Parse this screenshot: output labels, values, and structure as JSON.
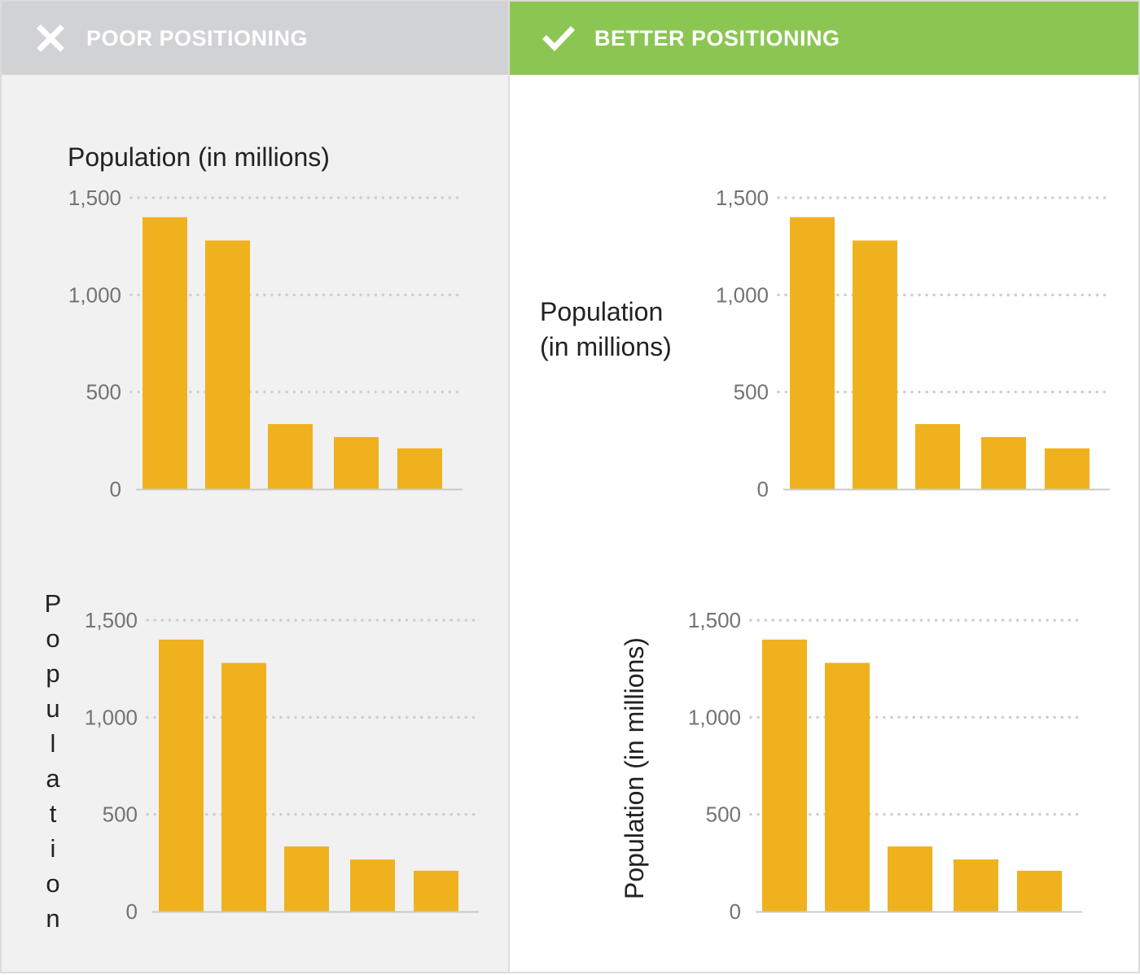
{
  "headers": {
    "poor": {
      "label": "POOR POSITIONING",
      "icon": "x-icon"
    },
    "better": {
      "label": "BETTER POSITIONING",
      "icon": "checkmark-icon"
    }
  },
  "colors": {
    "bar": "#efb21e",
    "poor_header": "#d1d2d4",
    "better_header": "#8bc653",
    "grid": "#cfcfcf",
    "tick_text": "#737373",
    "label_text": "#222222"
  },
  "chart_data": [
    {
      "id": "poor-top",
      "type": "bar",
      "title": "",
      "ylabel": "Population (in millions)",
      "ylabel_style": "title-above-axis",
      "categories": [
        "",
        "",
        "",
        "",
        ""
      ],
      "values": [
        1400,
        1280,
        335,
        268,
        210
      ],
      "ylim": [
        0,
        1500
      ],
      "yticks": [
        "0",
        "500",
        "1,000",
        "1,500"
      ],
      "grid": "dotted-horizontal"
    },
    {
      "id": "better-top",
      "type": "bar",
      "title": "",
      "ylabel": "Population (in millions)",
      "ylabel_lines": [
        "Population",
        "(in millions)"
      ],
      "ylabel_style": "left-horizontal-two-lines",
      "categories": [
        "",
        "",
        "",
        "",
        ""
      ],
      "values": [
        1400,
        1280,
        335,
        268,
        210
      ],
      "ylim": [
        0,
        1500
      ],
      "yticks": [
        "0",
        "500",
        "1,000",
        "1,500"
      ],
      "grid": "dotted-horizontal"
    },
    {
      "id": "poor-bottom",
      "type": "bar",
      "title": "",
      "ylabel": "Population",
      "ylabel_style": "stacked-letters",
      "categories": [
        "",
        "",
        "",
        "",
        ""
      ],
      "values": [
        1400,
        1280,
        335,
        268,
        210
      ],
      "ylim": [
        0,
        1500
      ],
      "yticks": [
        "0",
        "500",
        "1,000",
        "1,500"
      ],
      "grid": "dotted-horizontal"
    },
    {
      "id": "better-bottom",
      "type": "bar",
      "title": "",
      "ylabel": "Population (in millions)",
      "ylabel_style": "rotated-vertical",
      "categories": [
        "",
        "",
        "",
        "",
        ""
      ],
      "values": [
        1400,
        1280,
        335,
        268,
        210
      ],
      "ylim": [
        0,
        1500
      ],
      "yticks": [
        "0",
        "500",
        "1,000",
        "1,500"
      ],
      "grid": "dotted-horizontal"
    }
  ]
}
